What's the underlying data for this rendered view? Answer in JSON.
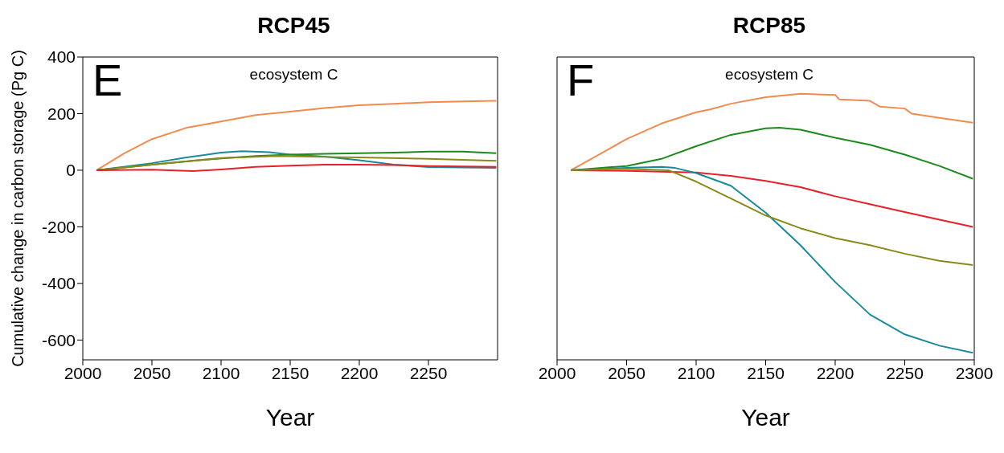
{
  "chart_data": [
    {
      "type": "line",
      "title": "RCP45",
      "xlabel": "Year",
      "ylabel": "Cumulative change in carbon storage (Pg C)",
      "annotations": [
        "E",
        "ecosystem C"
      ],
      "xlim": [
        2000,
        2300
      ],
      "xticks": [
        2000,
        2050,
        2100,
        2150,
        2200,
        2250
      ],
      "ylim": [
        -670,
        400
      ],
      "yticks": [
        -600,
        -400,
        -200,
        0,
        200,
        400
      ],
      "marker": "none",
      "line_style": "solid",
      "series": [
        {
          "color": "#f28b4e",
          "x": [
            2010,
            2030,
            2050,
            2075,
            2100,
            2125,
            2150,
            2175,
            2200,
            2225,
            2250,
            2275,
            2299
          ],
          "values": [
            0,
            60,
            110,
            150,
            172,
            195,
            207,
            220,
            230,
            235,
            240,
            243,
            245
          ]
        },
        {
          "color": "#1a8a9a",
          "x": [
            2010,
            2050,
            2075,
            2100,
            2115,
            2135,
            2150,
            2175,
            2200,
            2225,
            2250,
            2275,
            2299
          ],
          "values": [
            0,
            25,
            45,
            62,
            67,
            64,
            55,
            48,
            35,
            20,
            11,
            10,
            8
          ]
        },
        {
          "color": "#1e8a1e",
          "x": [
            2010,
            2050,
            2100,
            2125,
            2150,
            2175,
            2200,
            2225,
            2250,
            2275,
            2299
          ],
          "values": [
            0,
            20,
            42,
            50,
            55,
            58,
            60,
            62,
            66,
            66,
            60
          ]
        },
        {
          "color": "#8a8a1a",
          "x": [
            2010,
            2050,
            2100,
            2140,
            2175,
            2200,
            2250,
            2299
          ],
          "values": [
            0,
            20,
            43,
            50,
            47,
            45,
            40,
            33
          ]
        },
        {
          "color": "#e8202a",
          "x": [
            2010,
            2050,
            2080,
            2100,
            2125,
            2150,
            2175,
            2200,
            2225,
            2250,
            2299
          ],
          "values": [
            0,
            2,
            -3,
            3,
            12,
            16,
            20,
            20,
            18,
            15,
            12
          ]
        }
      ]
    },
    {
      "type": "line",
      "title": "RCP85",
      "xlabel": "Year",
      "annotations": [
        "F",
        "ecosystem C"
      ],
      "xlim": [
        2000,
        2300
      ],
      "xticks": [
        2000,
        2050,
        2100,
        2150,
        2200,
        2250,
        2300
      ],
      "ylim": [
        -670,
        400
      ],
      "yticks": [
        -600,
        -400,
        -200,
        0,
        200,
        400
      ],
      "tick_labels": "x",
      "marker": "none",
      "line_style": "solid",
      "series": [
        {
          "color": "#f28b4e",
          "x": [
            2010,
            2030,
            2050,
            2075,
            2100,
            2110,
            2125,
            2150,
            2175,
            2200,
            2203,
            2225,
            2232,
            2250,
            2255,
            2275,
            2299
          ],
          "values": [
            0,
            55,
            110,
            165,
            205,
            215,
            235,
            258,
            270,
            266,
            250,
            245,
            225,
            218,
            200,
            185,
            168
          ]
        },
        {
          "color": "#1e8a1e",
          "x": [
            2010,
            2050,
            2075,
            2100,
            2125,
            2150,
            2160,
            2175,
            2200,
            2225,
            2250,
            2275,
            2299
          ],
          "values": [
            0,
            15,
            40,
            85,
            125,
            148,
            150,
            143,
            115,
            90,
            55,
            15,
            -30
          ]
        },
        {
          "color": "#e8202a",
          "x": [
            2010,
            2050,
            2100,
            2125,
            2150,
            2175,
            2200,
            2225,
            2250,
            2275,
            2299
          ],
          "values": [
            0,
            -2,
            -8,
            -20,
            -38,
            -60,
            -92,
            -120,
            -148,
            -175,
            -200
          ]
        },
        {
          "color": "#1a8a9a",
          "x": [
            2010,
            2050,
            2075,
            2085,
            2100,
            2125,
            2150,
            2175,
            2200,
            2225,
            2250,
            2275,
            2299
          ],
          "values": [
            0,
            8,
            12,
            8,
            -10,
            -55,
            -150,
            -265,
            -395,
            -510,
            -580,
            -620,
            -645
          ]
        },
        {
          "color": "#8a8a1a",
          "x": [
            2010,
            2050,
            2080,
            2100,
            2125,
            2150,
            2175,
            2200,
            2225,
            2250,
            2275,
            2299
          ],
          "values": [
            0,
            5,
            0,
            -40,
            -100,
            -160,
            -205,
            -240,
            -265,
            -295,
            -320,
            -335
          ]
        }
      ]
    }
  ]
}
